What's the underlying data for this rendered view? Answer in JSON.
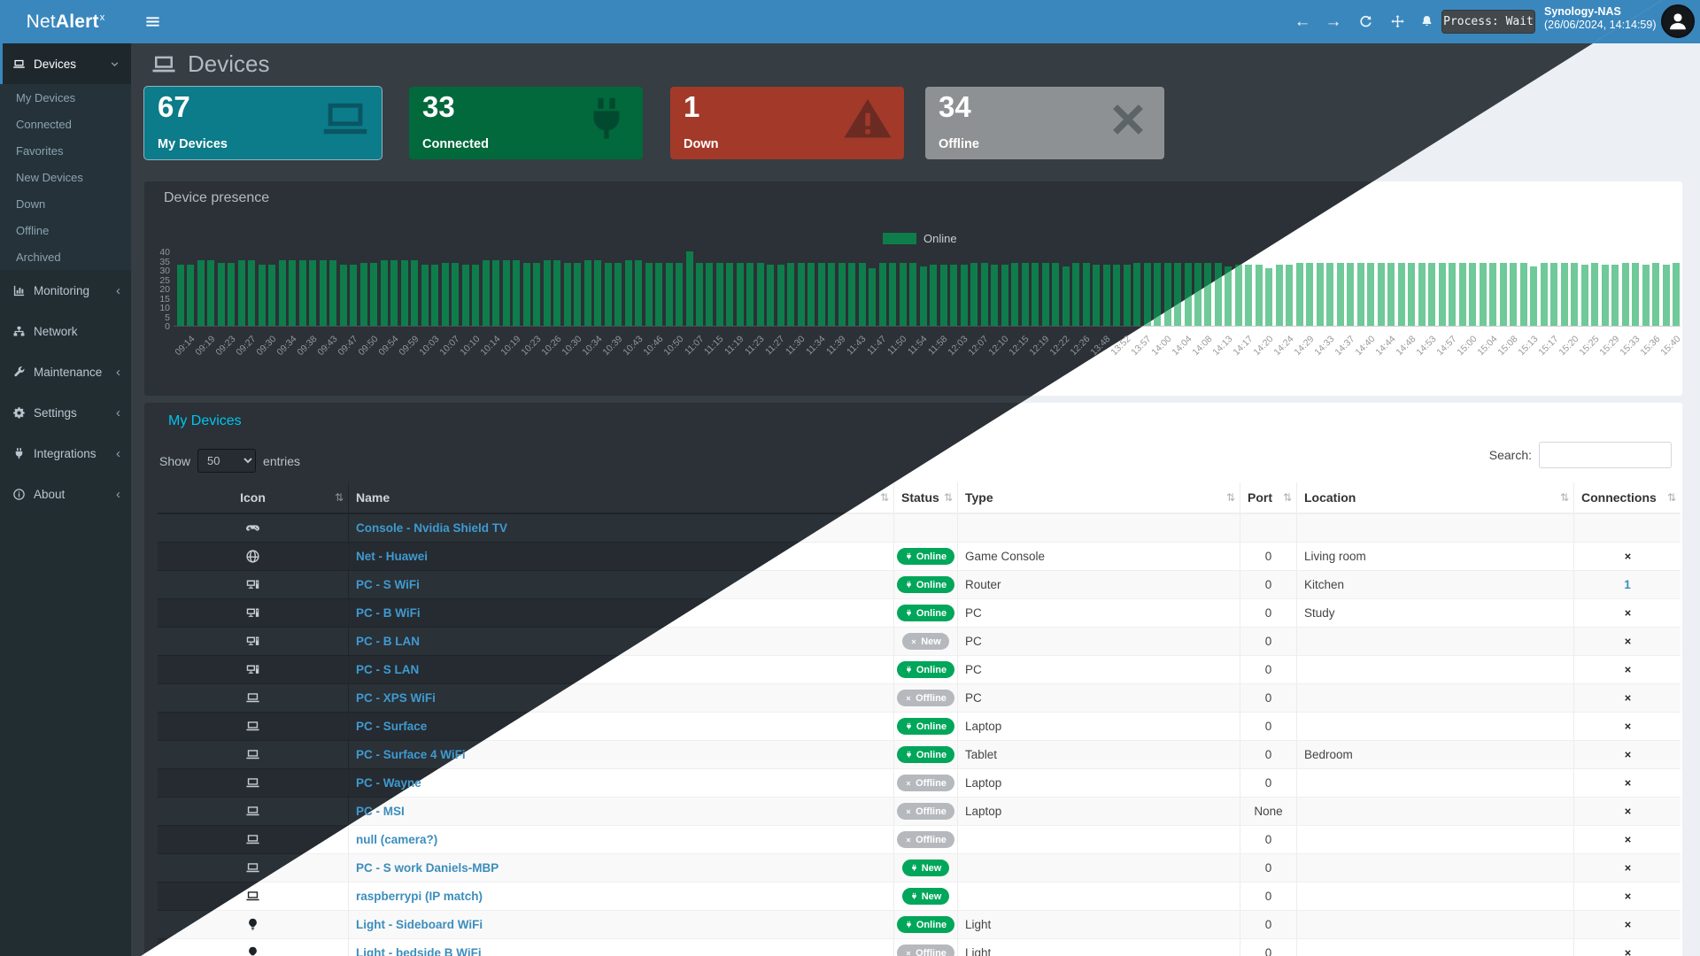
{
  "app": {
    "logo_prefix": "Net",
    "logo_bold": "Alert",
    "logo_sup": "x"
  },
  "header": {
    "process_status": "Process: Wait",
    "host": "Synology-NAS",
    "timestamp": "(26/06/2024, 14:14:59)"
  },
  "glyphs": {
    "sort": "⇅",
    "back": "←",
    "forward": "→",
    "chevron_collapsed": "‹"
  },
  "sidebar": {
    "sections": [
      {
        "label": "Devices",
        "icon": "laptop-icon",
        "expanded": true,
        "active": true,
        "children": [
          "My Devices",
          "Connected",
          "Favorites",
          "New Devices",
          "Down",
          "Offline",
          "Archived"
        ]
      },
      {
        "label": "Monitoring",
        "icon": "chart-icon",
        "chevron": true
      },
      {
        "label": "Network",
        "icon": "network-icon",
        "chevron": false
      },
      {
        "label": "Maintenance",
        "icon": "wrench-icon",
        "chevron": true
      },
      {
        "label": "Settings",
        "icon": "gear-icon",
        "chevron": true
      },
      {
        "label": "Integrations",
        "icon": "plug-icon",
        "chevron": true
      },
      {
        "label": "About",
        "icon": "info-icon",
        "chevron": true
      }
    ]
  },
  "page": {
    "title": "Devices"
  },
  "stat_cards": [
    {
      "value": "67",
      "label": "My Devices",
      "color": "#0c7b8a",
      "icon": "laptop-icon",
      "active": true
    },
    {
      "value": "33",
      "label": "Connected",
      "color": "#01693b",
      "icon": "plug-icon",
      "active": false
    },
    {
      "value": "1",
      "label": "Down",
      "color": "#a33929",
      "icon": "warning-icon",
      "active": false
    },
    {
      "value": "34",
      "label": "Offline",
      "color": "#8e9193",
      "icon": "x-icon",
      "active": false
    }
  ],
  "chart_data": {
    "type": "bar",
    "title": "Device presence",
    "xlabel": "",
    "ylabel": "",
    "ylim": [
      0,
      40
    ],
    "yticks": [
      0,
      5,
      10,
      15,
      20,
      25,
      30,
      35,
      40
    ],
    "grid": false,
    "legend_position": "top",
    "legend": [
      {
        "name": "Online",
        "color_dark": "#0e7d4b",
        "color_light": "#6fc998"
      }
    ],
    "bars_per_label": 2,
    "x": [
      "09:14",
      "09:19",
      "09:23",
      "09:27",
      "09:30",
      "09:34",
      "09:38",
      "09:43",
      "09:47",
      "09:50",
      "09:54",
      "09:59",
      "10:03",
      "10:07",
      "10:10",
      "10:14",
      "10:19",
      "10:23",
      "10:26",
      "10:30",
      "10:34",
      "10:39",
      "10:43",
      "10:46",
      "10:50",
      "11:07",
      "11:15",
      "11:19",
      "11:23",
      "11:27",
      "11:30",
      "11:34",
      "11:39",
      "11:43",
      "11:47",
      "11:50",
      "11:54",
      "11:58",
      "12:03",
      "12:07",
      "12:10",
      "12:15",
      "12:19",
      "12:22",
      "12:26",
      "13:48",
      "13:52",
      "13:57",
      "14:00",
      "14:04",
      "14:08",
      "14:13",
      "14:17",
      "14:20",
      "14:24",
      "14:29",
      "14:33",
      "14:37",
      "14:40",
      "14:44",
      "14:48",
      "14:53",
      "14:57",
      "15:00",
      "15:04",
      "15:08",
      "15:13",
      "15:17",
      "15:20",
      "15:25",
      "15:29",
      "15:33",
      "15:36",
      "15:40"
    ],
    "series": [
      {
        "name": "Online",
        "values": [
          33,
          35,
          34,
          35,
          33,
          35,
          35,
          35,
          33,
          34,
          35,
          35,
          33,
          34,
          33,
          35,
          35,
          34,
          35,
          34,
          35,
          34,
          35,
          34,
          34,
          [
            40,
            34
          ],
          34,
          34,
          34,
          33,
          34,
          34,
          34,
          34,
          [
            31,
            34
          ],
          34,
          [
            34,
            32
          ],
          33,
          33,
          34,
          33,
          34,
          34,
          [
            34,
            32
          ],
          34,
          33,
          33,
          34,
          34,
          34,
          34,
          [
            34,
            32
          ],
          33,
          [
            33,
            31
          ],
          33,
          34,
          34,
          34,
          34,
          34,
          34,
          34,
          34,
          34,
          34,
          34,
          [
            34,
            32
          ],
          34,
          34,
          [
            33,
            34
          ],
          33,
          34,
          [
            33,
            34
          ],
          [
            33,
            34
          ]
        ]
      }
    ]
  },
  "table": {
    "title": "My Devices",
    "show_label": "Show",
    "entries_label": "entries",
    "page_length": "50",
    "search_label": "Search:",
    "search_value": "",
    "columns": [
      "Icon",
      "Name",
      "Status",
      "Type",
      "Port",
      "Location",
      "Connections"
    ],
    "rows": [
      {
        "icon": "gamepad-icon",
        "name": "Console - Nvidia Shield TV",
        "status": "",
        "status_variant": "",
        "status_glyph": "",
        "type": "",
        "port": "",
        "location": "",
        "connections": ""
      },
      {
        "icon": "globe-icon",
        "name": "Net - Huawei",
        "status": "Online",
        "status_variant": "green",
        "status_glyph": "plug",
        "type": "Game Console",
        "port": "0",
        "location": "Living room",
        "connections": "x"
      },
      {
        "icon": "desktop-icon",
        "name": "PC - S WiFi",
        "status": "Online",
        "status_variant": "green",
        "status_glyph": "plug",
        "type": "Router",
        "port": "0",
        "location": "Kitchen",
        "connections": "1"
      },
      {
        "icon": "desktop-icon",
        "name": "PC - B WiFi",
        "status": "Online",
        "status_variant": "green",
        "status_glyph": "plug",
        "type": "PC",
        "port": "0",
        "location": "Study",
        "connections": "x"
      },
      {
        "icon": "desktop-icon",
        "name": "PC - B LAN",
        "status": "New",
        "status_variant": "gray",
        "status_glyph": "x",
        "type": "PC",
        "port": "0",
        "location": "",
        "connections": "x"
      },
      {
        "icon": "desktop-icon",
        "name": "PC - S LAN",
        "status": "Online",
        "status_variant": "green",
        "status_glyph": "plug",
        "type": "PC",
        "port": "0",
        "location": "",
        "connections": "x"
      },
      {
        "icon": "laptop-icon",
        "name": "PC - XPS WiFi",
        "status": "Offline",
        "status_variant": "gray",
        "status_glyph": "x",
        "type": "PC",
        "port": "0",
        "location": "",
        "connections": "x"
      },
      {
        "icon": "laptop-icon",
        "name": "PC - Surface",
        "status": "Online",
        "status_variant": "green",
        "status_glyph": "plug",
        "type": "Laptop",
        "port": "0",
        "location": "",
        "connections": "x"
      },
      {
        "icon": "laptop-icon",
        "name": "PC - Surface 4 WiFi",
        "status": "Online",
        "status_variant": "green",
        "status_glyph": "plug",
        "type": "Tablet",
        "port": "0",
        "location": "Bedroom",
        "connections": "x"
      },
      {
        "icon": "laptop-icon",
        "name": "PC - Wayne",
        "status": "Offline",
        "status_variant": "gray",
        "status_glyph": "x",
        "type": "Laptop",
        "port": "0",
        "location": "",
        "connections": "x"
      },
      {
        "icon": "laptop-icon",
        "name": "PC - MSI",
        "status": "Offline",
        "status_variant": "gray",
        "status_glyph": "x",
        "type": "Laptop",
        "port": "None",
        "location": "",
        "connections": "x"
      },
      {
        "icon": "laptop-icon",
        "name": "null (camera?)",
        "status": "Offline",
        "status_variant": "gray",
        "status_glyph": "x",
        "type": "",
        "port": "0",
        "location": "",
        "connections": "x"
      },
      {
        "icon": "laptop-icon",
        "name": "PC - S work Daniels-MBP",
        "status": "New",
        "status_variant": "green",
        "status_glyph": "plug",
        "type": "",
        "port": "0",
        "location": "",
        "connections": "x"
      },
      {
        "icon": "laptop-icon",
        "name": "raspberrypi (IP match)",
        "status": "New",
        "status_variant": "green",
        "status_glyph": "plug",
        "type": "",
        "port": "0",
        "location": "",
        "connections": "x"
      },
      {
        "icon": "bulb-icon",
        "name": "Light - Sideboard WiFi",
        "status": "Online",
        "status_variant": "green",
        "status_glyph": "plug",
        "type": "Light",
        "port": "0",
        "location": "",
        "connections": "x"
      },
      {
        "icon": "bulb-icon",
        "name": "Light - bedside B WiFi",
        "status": "Offline",
        "status_variant": "gray",
        "status_glyph": "x",
        "type": "Light",
        "port": "0",
        "location": "",
        "connections": "x"
      }
    ]
  }
}
